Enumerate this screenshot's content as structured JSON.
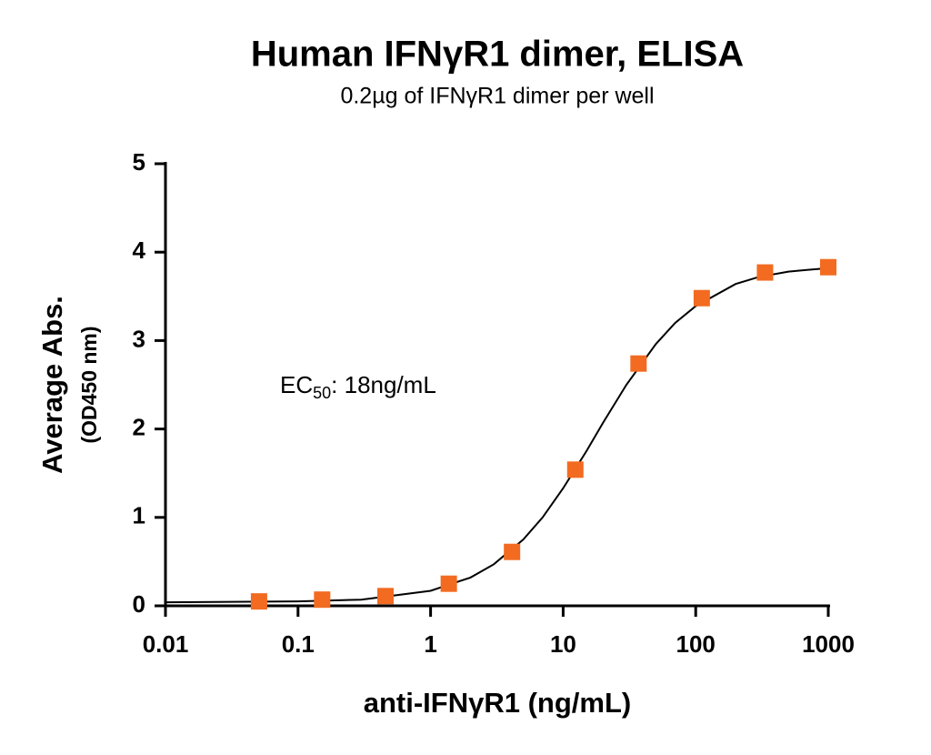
{
  "chart_data": {
    "type": "scatter",
    "title": "Human IFNγR1 dimer, ELISA",
    "subtitle": "0.2µg of IFNγR1 dimer per well",
    "x_label": "anti-IFNγR1 (ng/mL)",
    "y_label": "Average Abs.",
    "y_label_sub": "(OD450 nm)",
    "annotation": {
      "text": "EC",
      "subscript": "50",
      "rest": ": 18ng/mL"
    },
    "xscale": "log",
    "xlim": [
      0.01,
      1000
    ],
    "xticks": [
      0.01,
      0.1,
      1,
      10,
      100,
      1000
    ],
    "ylim": [
      0,
      5
    ],
    "yticks": [
      0,
      1,
      2,
      3,
      4,
      5
    ],
    "points": {
      "color": "#f26b21",
      "x": [
        0.0508,
        0.152,
        0.457,
        1.372,
        4.115,
        12.35,
        37.04,
        111.1,
        333.3,
        1000
      ],
      "y": [
        0.05,
        0.07,
        0.11,
        0.25,
        0.61,
        1.54,
        2.74,
        3.48,
        3.77,
        3.83
      ]
    },
    "curve": {
      "color": "#000000",
      "x": [
        0.01,
        0.1,
        0.3,
        1,
        2,
        3,
        5,
        7,
        10,
        15,
        20,
        30,
        50,
        70,
        100,
        200,
        300,
        500,
        1000
      ],
      "y": [
        0.04,
        0.05,
        0.07,
        0.17,
        0.32,
        0.47,
        0.75,
        1.0,
        1.33,
        1.75,
        2.07,
        2.5,
        2.96,
        3.2,
        3.39,
        3.64,
        3.72,
        3.78,
        3.82
      ]
    }
  }
}
